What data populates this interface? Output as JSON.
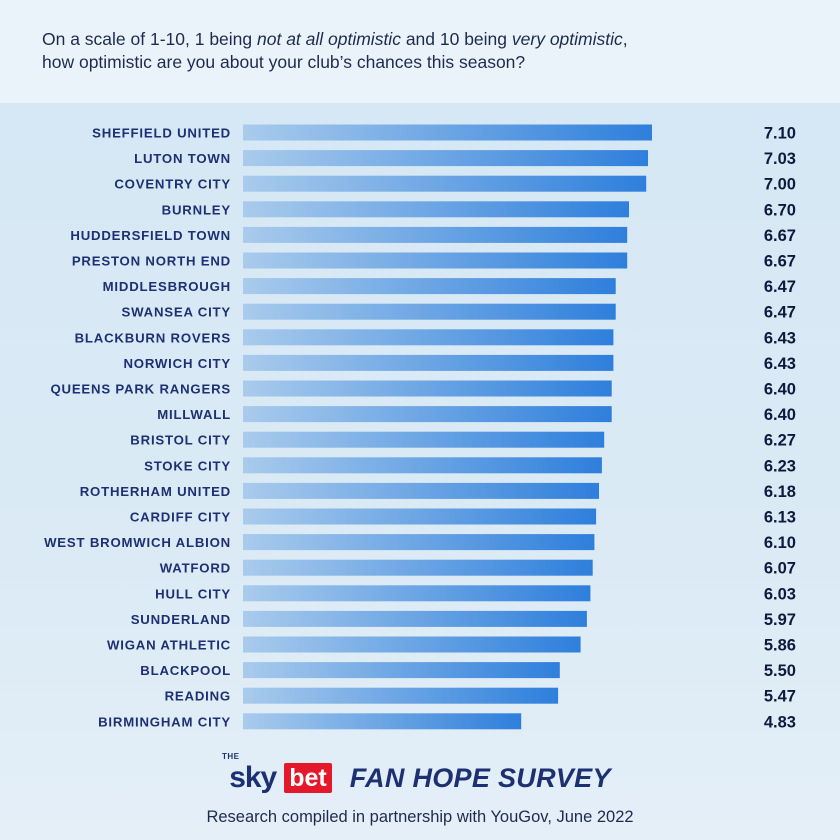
{
  "question": {
    "part1": "On a scale of 1-10, 1 being ",
    "em1": "not at all optimistic",
    "part2": " and 10 being ",
    "em2": "very optimistic",
    "part3": ",",
    "line2": "how optimistic are you about your club’s chances this season?"
  },
  "chart_data": {
    "type": "bar",
    "orientation": "horizontal",
    "categories": [
      "SHEFFIELD UNITED",
      "LUTON TOWN",
      "COVENTRY CITY",
      "BURNLEY",
      "HUDDERSFIELD TOWN",
      "PRESTON NORTH END",
      "MIDDLESBROUGH",
      "SWANSEA CITY",
      "BLACKBURN ROVERS",
      "NORWICH CITY",
      "QUEENS PARK RANGERS",
      "MILLWALL",
      "BRISTOL CITY",
      "STOKE CITY",
      "ROTHERHAM UNITED",
      "CARDIFF CITY",
      "WEST BROMWICH ALBION",
      "WATFORD",
      "HULL CITY",
      "SUNDERLAND",
      "WIGAN ATHLETIC",
      "BLACKPOOL",
      "READING",
      "BIRMINGHAM CITY"
    ],
    "values": [
      7.1,
      7.03,
      7.0,
      6.7,
      6.67,
      6.67,
      6.47,
      6.47,
      6.43,
      6.43,
      6.4,
      6.4,
      6.27,
      6.23,
      6.18,
      6.13,
      6.1,
      6.07,
      6.03,
      5.97,
      5.86,
      5.5,
      5.47,
      4.83
    ],
    "value_labels": [
      "7.10",
      "7.03",
      "7.00",
      "6.70",
      "6.67",
      "6.67",
      "6.47",
      "6.47",
      "6.43",
      "6.43",
      "6.40",
      "6.40",
      "6.27",
      "6.23",
      "6.18",
      "6.13",
      "6.10",
      "6.07",
      "6.03",
      "5.97",
      "5.86",
      "5.50",
      "5.47",
      "4.83"
    ],
    "title": "",
    "xlabel": "",
    "ylabel": "",
    "xlim": [
      0,
      7.1
    ],
    "grid": false,
    "legend": "none",
    "bar_color_start": "#a9cbec",
    "bar_color_end": "#2e7fdc"
  },
  "branding": {
    "the": "THE",
    "sky": "sky",
    "bet": "bet",
    "survey_title": "FAN HOPE SURVEY",
    "credit": "Research compiled in partnership with YouGov,  June 2022",
    "sky_color": "#1c3072",
    "bet_color": "#e5172b"
  }
}
